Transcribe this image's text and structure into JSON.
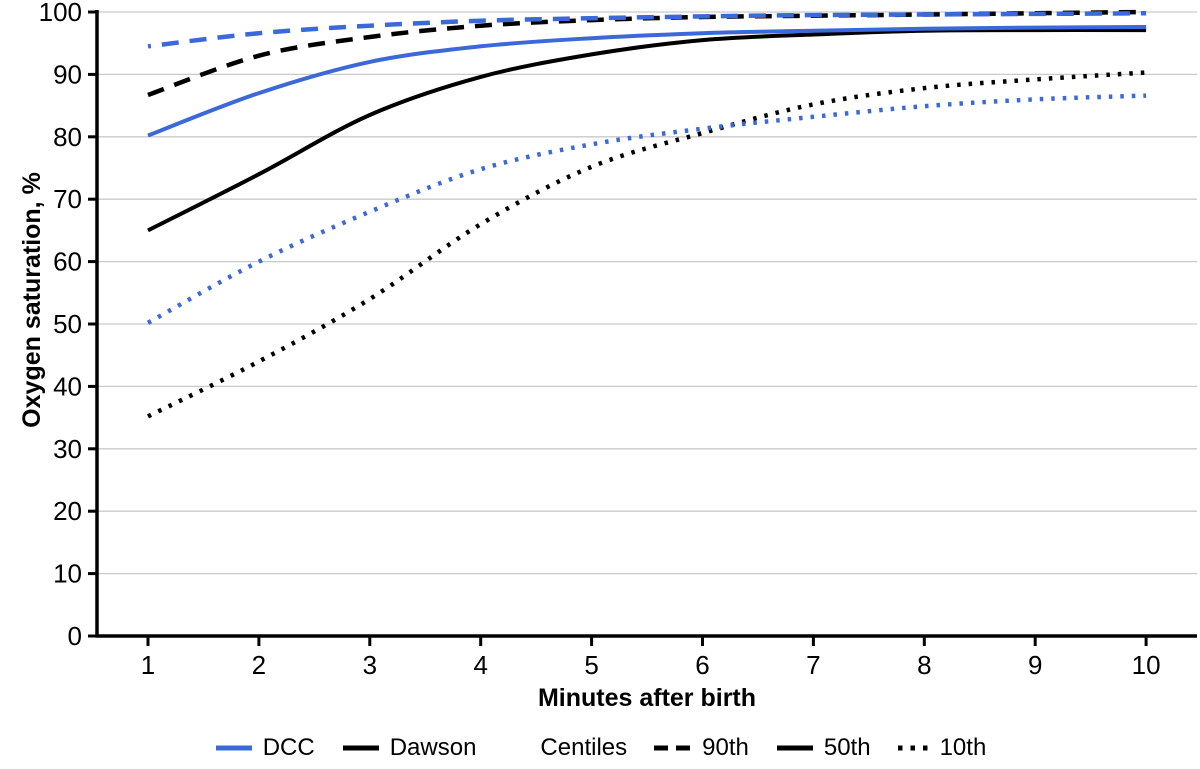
{
  "figure": {
    "xlabel": "Minutes after birth",
    "ylabel": "Oxygen saturation, %"
  },
  "legend": {
    "dcc": "DCC",
    "dawson": "Dawson",
    "centiles": "Centiles",
    "p90": "90th",
    "p50": "50th",
    "p10": "10th"
  },
  "colors": {
    "dcc_blue": "#3b69d8",
    "dawson_black": "#000000",
    "grid_gray": "#c9c9c9",
    "axis_black": "#000000"
  },
  "chart_data": {
    "type": "line",
    "title": "",
    "xlabel": "Minutes after birth",
    "ylabel": "Oxygen saturation, %",
    "x": [
      1,
      2,
      3,
      4,
      5,
      6,
      7,
      8,
      9,
      10
    ],
    "xticks": [
      1,
      2,
      3,
      4,
      5,
      6,
      7,
      8,
      9,
      10
    ],
    "yticks": [
      0,
      10,
      20,
      30,
      40,
      50,
      60,
      70,
      80,
      90,
      100
    ],
    "xlim": [
      0.54,
      10.45
    ],
    "ylim": [
      0,
      100
    ],
    "grid": true,
    "legend_position": "bottom",
    "series": [
      {
        "name": "Dawson 90th centile",
        "group": "Dawson",
        "centile": "90th",
        "style": "dashed",
        "color": "#000000",
        "values": [
          86.7,
          93.0,
          96.0,
          97.8,
          98.7,
          99.2,
          99.4,
          99.6,
          99.8,
          100.0
        ]
      },
      {
        "name": "Dawson 50th centile",
        "group": "Dawson",
        "centile": "50th",
        "style": "solid",
        "color": "#000000",
        "values": [
          65.0,
          74.0,
          83.5,
          89.6,
          93.2,
          95.5,
          96.4,
          97.0,
          97.1,
          97.1
        ]
      },
      {
        "name": "Dawson 10th centile",
        "group": "Dawson",
        "centile": "10th",
        "style": "dotted",
        "color": "#000000",
        "values": [
          35.2,
          44.0,
          54.0,
          66.0,
          75.2,
          80.6,
          85.2,
          87.8,
          89.2,
          90.3
        ]
      },
      {
        "name": "DCC 90th centile",
        "group": "DCC",
        "centile": "90th",
        "style": "dashed",
        "color": "#3b69d8",
        "values": [
          94.5,
          96.6,
          97.8,
          98.6,
          99.0,
          99.3,
          99.5,
          99.6,
          99.7,
          99.8
        ]
      },
      {
        "name": "DCC 50th centile",
        "group": "DCC",
        "centile": "50th",
        "style": "solid",
        "color": "#3b69d8",
        "values": [
          80.2,
          87.0,
          92.0,
          94.5,
          95.8,
          96.6,
          97.0,
          97.3,
          97.5,
          97.6
        ]
      },
      {
        "name": "DCC 10th centile",
        "group": "DCC",
        "centile": "10th",
        "style": "dotted",
        "color": "#3b69d8",
        "values": [
          50.2,
          60.0,
          68.0,
          74.8,
          78.8,
          81.3,
          83.2,
          84.9,
          86.0,
          86.6
        ]
      }
    ]
  }
}
